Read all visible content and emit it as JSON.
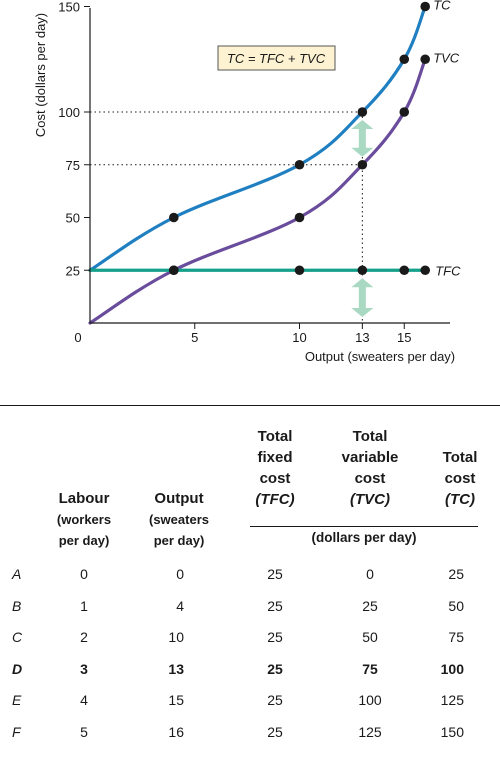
{
  "chart_data": {
    "type": "line",
    "ylabel": "Cost (dollars per day)",
    "xlabel": "Output (sweaters per day)",
    "origin_label": "0",
    "xlim": [
      0,
      16.5
    ],
    "ylim": [
      0,
      150
    ],
    "xticks": [
      5,
      10,
      13,
      15
    ],
    "yticks": [
      25,
      50,
      75,
      100,
      150
    ],
    "equation": "TC = TFC + TVC",
    "series": [
      {
        "name": "TC",
        "color": "#1f7fc1",
        "x": [
          0,
          4,
          10,
          13,
          15,
          16
        ],
        "y": [
          25,
          50,
          75,
          100,
          125,
          150
        ]
      },
      {
        "name": "TVC",
        "color": "#6a4c9c",
        "x": [
          0,
          4,
          10,
          13,
          15,
          16
        ],
        "y": [
          0,
          25,
          50,
          75,
          100,
          125
        ]
      },
      {
        "name": "TFC",
        "color": "#15a08a",
        "x": [
          0,
          4,
          10,
          13,
          15,
          16
        ],
        "y": [
          25,
          25,
          25,
          25,
          25,
          25
        ]
      }
    ],
    "guide_x": 13,
    "guide_y": [
      75,
      100
    ],
    "arrow_color": "#a9d9c2"
  },
  "table": {
    "headers": {
      "labour": "Labour",
      "labour_sub1": "(workers",
      "labour_sub2": "per day)",
      "output": "Output",
      "output_sub1": "(sweaters",
      "output_sub2": "per day)",
      "tfc_l1": "Total",
      "tfc_l2": "fixed",
      "tfc_l3": "cost",
      "tfc_abbr": "(TFC)",
      "tvc_l1": "Total",
      "tvc_l2": "variable",
      "tvc_l3": "cost",
      "tvc_abbr": "(TVC)",
      "tc_l1": "Total",
      "tc_l2": "cost",
      "tc_abbr": "(TC)",
      "units": "(dollars per day)"
    },
    "rows": [
      {
        "label": "A",
        "labour": "0",
        "output": "0",
        "tfc": "25",
        "tvc": "0",
        "tc": "25"
      },
      {
        "label": "B",
        "labour": "1",
        "output": "4",
        "tfc": "25",
        "tvc": "25",
        "tc": "50"
      },
      {
        "label": "C",
        "labour": "2",
        "output": "10",
        "tfc": "25",
        "tvc": "50",
        "tc": "75"
      },
      {
        "label": "D",
        "labour": "3",
        "output": "13",
        "tfc": "25",
        "tvc": "75",
        "tc": "100",
        "bold": true
      },
      {
        "label": "E",
        "labour": "4",
        "output": "15",
        "tfc": "25",
        "tvc": "100",
        "tc": "125"
      },
      {
        "label": "F",
        "labour": "5",
        "output": "16",
        "tfc": "25",
        "tvc": "125",
        "tc": "150"
      }
    ]
  }
}
